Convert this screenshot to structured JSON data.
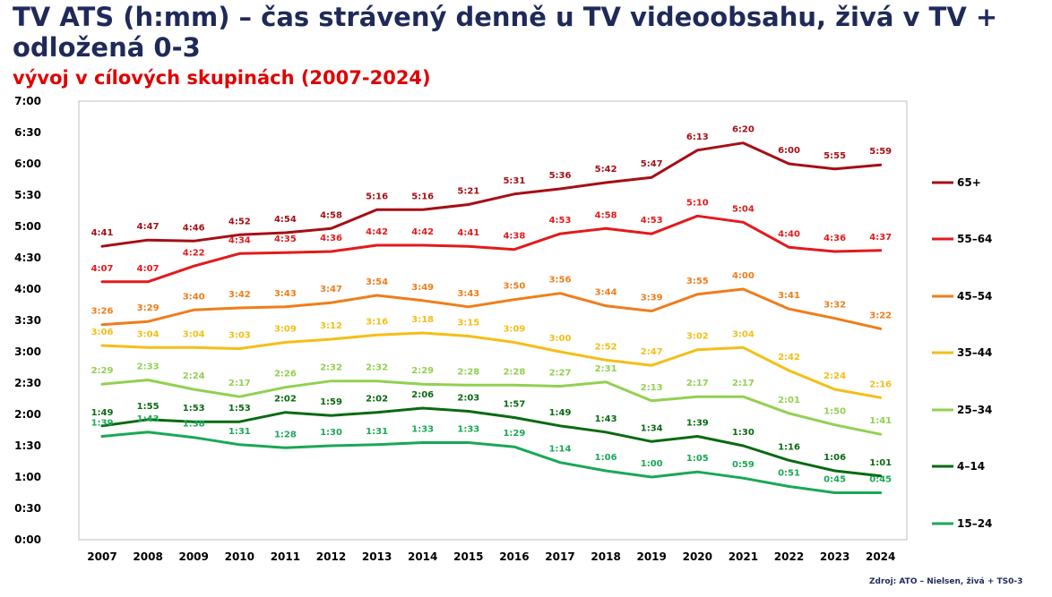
{
  "title": "TV ATS (h:mm) – čas strávený denně u TV videoobsahu, živá v TV + odložená 0-3",
  "subtitle": "vývoj v cílových skupinách (2007-2024)",
  "source": "Zdroj: ATO – Nielsen, živá + TS0-3",
  "chart_data": {
    "type": "line",
    "title": "TV ATS (h:mm) – čas strávený denně u TV videoobsahu, živá v TV + odložená 0-3",
    "subtitle": "vývoj v cílových skupinách (2007-2024)",
    "xlabel": "",
    "ylabel": "",
    "ylim": [
      0,
      420
    ],
    "y_unit": "minutes",
    "y_ticks": [
      0,
      30,
      60,
      90,
      120,
      150,
      180,
      210,
      240,
      270,
      300,
      330,
      360,
      390,
      420
    ],
    "y_tick_labels": [
      "0:00",
      "0:30",
      "1:00",
      "1:30",
      "2:00",
      "2:30",
      "3:00",
      "3:30",
      "4:00",
      "4:30",
      "5:00",
      "5:30",
      "6:00",
      "6:30",
      "7:00"
    ],
    "categories": [
      "2007",
      "2008",
      "2009",
      "2010",
      "2011",
      "2012",
      "2013",
      "2014",
      "2015",
      "2016",
      "2017",
      "2018",
      "2019",
      "2020",
      "2021",
      "2022",
      "2023",
      "2024"
    ],
    "legend_position": "right",
    "series": [
      {
        "name": "65+",
        "color": "#a50f15",
        "values": [
          281,
          287,
          286,
          292,
          294,
          298,
          316,
          316,
          321,
          331,
          336,
          342,
          347,
          373,
          380,
          360,
          355,
          359
        ],
        "labels": [
          "4:41",
          "4:47",
          "4:46",
          "4:52",
          "4:54",
          "4:58",
          "5:16",
          "5:16",
          "5:21",
          "5:31",
          "5:36",
          "5:42",
          "5:47",
          "6:13",
          "6:20",
          "6:00",
          "5:55",
          "5:59"
        ]
      },
      {
        "name": "55–64",
        "color": "#e31a1c",
        "values": [
          247,
          247,
          262,
          274,
          275,
          276,
          282,
          282,
          281,
          278,
          293,
          298,
          293,
          310,
          304,
          280,
          276,
          277
        ],
        "labels": [
          "4:07",
          "4:07",
          "4:22",
          "4:34",
          "4:35",
          "4:36",
          "4:42",
          "4:42",
          "4:41",
          "4:38",
          "4:53",
          "4:58",
          "4:53",
          "5:10",
          "5:04",
          "4:40",
          "4:36",
          "4:37"
        ]
      },
      {
        "name": "45–54",
        "color": "#f07d1a",
        "values": [
          206,
          209,
          220,
          222,
          223,
          227,
          234,
          229,
          223,
          230,
          236,
          224,
          219,
          235,
          240,
          221,
          212,
          202
        ],
        "labels": [
          "3:26",
          "3:29",
          "3:40",
          "3:42",
          "3:43",
          "3:47",
          "3:54",
          "3:49",
          "3:43",
          "3:50",
          "3:56",
          "3:44",
          "3:39",
          "3:55",
          "4:00",
          "3:41",
          "3:32",
          "3:22"
        ]
      },
      {
        "name": "35–44",
        "color": "#f5be16",
        "values": [
          186,
          184,
          184,
          183,
          189,
          192,
          196,
          198,
          195,
          189,
          180,
          172,
          167,
          182,
          184,
          162,
          144,
          136
        ],
        "labels": [
          "3:06",
          "3:04",
          "3:04",
          "3:03",
          "3:09",
          "3:12",
          "3:16",
          "3:18",
          "3:15",
          "3:09",
          "3:00",
          "2:52",
          "2:47",
          "3:02",
          "3:04",
          "2:42",
          "2:24",
          "2:16"
        ]
      },
      {
        "name": "25–34",
        "color": "#92d050",
        "values": [
          149,
          153,
          144,
          137,
          146,
          152,
          152,
          149,
          148,
          148,
          147,
          151,
          133,
          137,
          137,
          121,
          110,
          101
        ],
        "labels": [
          "2:29",
          "2:33",
          "2:24",
          "2:17",
          "2:26",
          "2:32",
          "2:32",
          "2:29",
          "2:28",
          "2:28",
          "2:27",
          "2:31",
          "2:13",
          "2:17",
          "2:17",
          "2:01",
          "1:50",
          "1:41"
        ]
      },
      {
        "name": "4–14",
        "color": "#0a6a12",
        "values": [
          109,
          115,
          113,
          113,
          122,
          119,
          122,
          126,
          123,
          117,
          109,
          103,
          94,
          99,
          90,
          76,
          66,
          61
        ],
        "labels": [
          "1:49",
          "1:55",
          "1:53",
          "1:53",
          "2:02",
          "1:59",
          "2:02",
          "2:06",
          "2:03",
          "1:57",
          "1:49",
          "1:43",
          "1:34",
          "1:39",
          "1:30",
          "1:16",
          "1:06",
          "1:01"
        ]
      },
      {
        "name": "15–24",
        "color": "#1aa857",
        "values": [
          99,
          103,
          98,
          91,
          88,
          90,
          91,
          93,
          93,
          89,
          74,
          66,
          60,
          65,
          59,
          51,
          45,
          45
        ],
        "labels": [
          "1:39",
          "1:43",
          "1:38",
          "1:31",
          "1:28",
          "1:30",
          "1:31",
          "1:33",
          "1:33",
          "1:29",
          "1:14",
          "1:06",
          "1:00",
          "1:05",
          "0:59",
          "0:51",
          "0:45",
          "0:45"
        ]
      }
    ]
  }
}
